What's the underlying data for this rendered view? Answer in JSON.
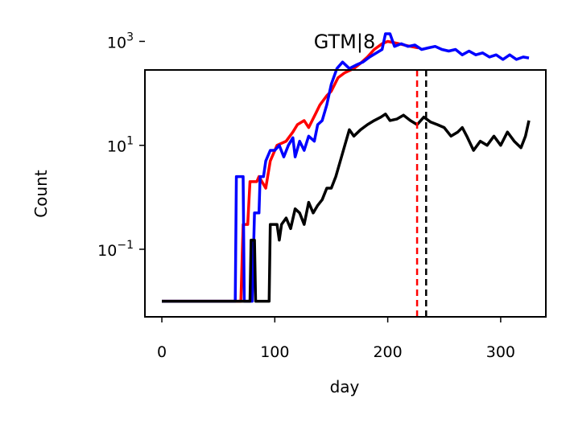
{
  "chart_data": {
    "type": "line",
    "title": "GTM|8",
    "xlabel": "day",
    "ylabel": "Count",
    "xlim": [
      -15,
      340
    ],
    "ylim_log10": [
      -2.3,
      2.45
    ],
    "y_scale": "log",
    "x_ticks": [
      0,
      100,
      200,
      300
    ],
    "y_ticks": [
      {
        "base": "10",
        "exp": "−1",
        "log10": -1
      },
      {
        "base": "10",
        "exp": "1",
        "log10": 1
      },
      {
        "base": "10",
        "exp": "3",
        "log10": 3
      }
    ],
    "grid": false,
    "legend": "none",
    "series": [
      {
        "color": "#ff0000",
        "points": [
          [
            0,
            0.01
          ],
          [
            70,
            0.01
          ],
          [
            72,
            0.3
          ],
          [
            76,
            0.3
          ],
          [
            78,
            2
          ],
          [
            84,
            2
          ],
          [
            86,
            2.5
          ],
          [
            92,
            1.5
          ],
          [
            96,
            5
          ],
          [
            102,
            10
          ],
          [
            110,
            12
          ],
          [
            116,
            18
          ],
          [
            120,
            25
          ],
          [
            126,
            30
          ],
          [
            130,
            22
          ],
          [
            136,
            40
          ],
          [
            140,
            60
          ],
          [
            146,
            90
          ],
          [
            150,
            110
          ],
          [
            156,
            200
          ],
          [
            162,
            250
          ],
          [
            170,
            300
          ],
          [
            176,
            380
          ],
          [
            182,
            500
          ],
          [
            188,
            700
          ],
          [
            195,
            900
          ],
          [
            200,
            1000
          ],
          [
            210,
            900
          ],
          [
            220,
            800
          ],
          [
            227,
            750
          ]
        ]
      },
      {
        "color": "#0000ff",
        "points": [
          [
            0,
            0.01
          ],
          [
            65,
            0.01
          ],
          [
            66,
            2.5
          ],
          [
            72,
            2.5
          ],
          [
            73,
            0.01
          ],
          [
            80,
            0.01
          ],
          [
            82,
            0.5
          ],
          [
            86,
            0.5
          ],
          [
            87,
            2.5
          ],
          [
            90,
            2.5
          ],
          [
            92,
            5
          ],
          [
            96,
            8
          ],
          [
            100,
            8
          ],
          [
            104,
            10
          ],
          [
            108,
            6
          ],
          [
            112,
            10
          ],
          [
            116,
            14
          ],
          [
            118,
            6
          ],
          [
            122,
            12
          ],
          [
            126,
            8
          ],
          [
            130,
            15
          ],
          [
            135,
            12
          ],
          [
            138,
            25
          ],
          [
            142,
            30
          ],
          [
            146,
            60
          ],
          [
            150,
            150
          ],
          [
            155,
            300
          ],
          [
            160,
            400
          ],
          [
            166,
            300
          ],
          [
            172,
            350
          ],
          [
            178,
            400
          ],
          [
            184,
            500
          ],
          [
            190,
            600
          ],
          [
            195,
            700
          ],
          [
            198,
            1400
          ],
          [
            202,
            1400
          ],
          [
            206,
            800
          ],
          [
            212,
            900
          ],
          [
            218,
            800
          ],
          [
            224,
            850
          ],
          [
            230,
            700
          ],
          [
            236,
            750
          ],
          [
            242,
            800
          ],
          [
            248,
            700
          ],
          [
            254,
            650
          ],
          [
            260,
            700
          ],
          [
            266,
            550
          ],
          [
            272,
            650
          ],
          [
            278,
            550
          ],
          [
            284,
            600
          ],
          [
            290,
            500
          ],
          [
            296,
            550
          ],
          [
            302,
            450
          ],
          [
            308,
            550
          ],
          [
            314,
            450
          ],
          [
            320,
            500
          ],
          [
            325,
            480
          ]
        ]
      },
      {
        "color": "#000000",
        "points": [
          [
            0,
            0.01
          ],
          [
            78,
            0.01
          ],
          [
            79,
            0.15
          ],
          [
            82,
            0.15
          ],
          [
            83,
            0.01
          ],
          [
            95,
            0.01
          ],
          [
            96,
            0.3
          ],
          [
            102,
            0.3
          ],
          [
            104,
            0.15
          ],
          [
            106,
            0.3
          ],
          [
            110,
            0.4
          ],
          [
            114,
            0.25
          ],
          [
            118,
            0.6
          ],
          [
            122,
            0.5
          ],
          [
            126,
            0.3
          ],
          [
            130,
            0.8
          ],
          [
            134,
            0.5
          ],
          [
            138,
            0.7
          ],
          [
            142,
            0.9
          ],
          [
            146,
            1.5
          ],
          [
            150,
            1.5
          ],
          [
            154,
            2.5
          ],
          [
            158,
            5
          ],
          [
            162,
            10
          ],
          [
            166,
            20
          ],
          [
            170,
            15
          ],
          [
            176,
            20
          ],
          [
            182,
            25
          ],
          [
            188,
            30
          ],
          [
            194,
            35
          ],
          [
            198,
            40
          ],
          [
            202,
            30
          ],
          [
            208,
            32
          ],
          [
            214,
            38
          ],
          [
            220,
            30
          ],
          [
            226,
            25
          ],
          [
            232,
            35
          ],
          [
            238,
            28
          ],
          [
            244,
            25
          ],
          [
            250,
            22
          ],
          [
            256,
            15
          ],
          [
            262,
            18
          ],
          [
            266,
            22
          ],
          [
            270,
            15
          ],
          [
            276,
            8
          ],
          [
            282,
            12
          ],
          [
            288,
            10
          ],
          [
            294,
            15
          ],
          [
            300,
            10
          ],
          [
            306,
            18
          ],
          [
            312,
            12
          ],
          [
            318,
            9
          ],
          [
            322,
            15
          ],
          [
            325,
            30
          ]
        ]
      }
    ],
    "vlines": [
      {
        "x": 226,
        "color": "#ff0000",
        "style": "dashed"
      },
      {
        "x": 234,
        "color": "#000000",
        "style": "dashed"
      }
    ]
  }
}
